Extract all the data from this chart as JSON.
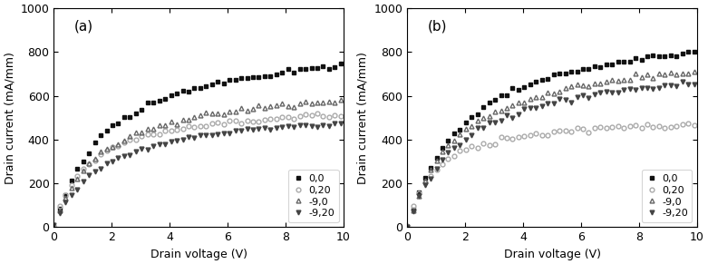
{
  "panel_a": {
    "label": "(a)",
    "curves": {
      "0,0": {
        "color": "#111111",
        "marker": "s",
        "filled": true,
        "sat": 870,
        "k": 1.8,
        "x0": 0.0
      },
      "0,20": {
        "color": "#aaaaaa",
        "marker": "o",
        "filled": false,
        "sat": 575,
        "k": 1.2,
        "x0": 0.0
      },
      "-9,0": {
        "color": "#666666",
        "marker": "^",
        "filled": false,
        "sat": 670,
        "k": 1.6,
        "x0": 0.0
      },
      "-9,20": {
        "color": "#444444",
        "marker": "v",
        "filled": true,
        "sat": 555,
        "k": 1.7,
        "x0": 0.0
      }
    }
  },
  "panel_b": {
    "label": "(b)",
    "curves": {
      "0,0": {
        "color": "#111111",
        "marker": "s",
        "filled": true,
        "sat": 960,
        "k": 2.0,
        "x0": 0.0
      },
      "0,20": {
        "color": "#aaaaaa",
        "marker": "o",
        "filled": false,
        "sat": 510,
        "k": 0.9,
        "x0": 0.0
      },
      "-9,0": {
        "color": "#666666",
        "marker": "^",
        "filled": false,
        "sat": 840,
        "k": 1.8,
        "x0": 0.0
      },
      "-9,20": {
        "color": "#444444",
        "marker": "v",
        "filled": true,
        "sat": 785,
        "k": 1.9,
        "x0": 0.0
      }
    }
  },
  "xlim": [
    0,
    10
  ],
  "ylim": [
    0,
    1000
  ],
  "xlabel": "Drain voltage (V)",
  "ylabel": "Drain current (mA/mm)",
  "xticks": [
    0,
    2,
    4,
    6,
    8,
    10
  ],
  "yticks": [
    0,
    200,
    400,
    600,
    800,
    1000
  ],
  "markersize": 4,
  "n_points": 100
}
